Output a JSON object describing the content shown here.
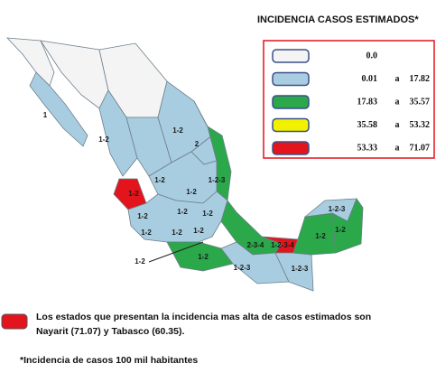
{
  "title": "INCIDENCIA CASOS ESTIMADOS*",
  "legend": [
    {
      "color": "#f4f4f4",
      "min": "0.0"
    },
    {
      "color": "#a9cde0",
      "min": "0.01",
      "sep": "a",
      "max": "17.82"
    },
    {
      "color": "#2aa84a",
      "min": "17.83",
      "sep": "a",
      "max": "35.57"
    },
    {
      "color": "#f2f200",
      "min": "35.58",
      "sep": "a",
      "max": "53.32"
    },
    {
      "color": "#e3141b",
      "min": "53.33",
      "sep": "a",
      "max": "71.07"
    }
  ],
  "state_labels": [
    "1",
    "1-2",
    "1-2",
    "2",
    "1-2-3",
    "1-2",
    "1-2",
    "1-2",
    "1-2",
    "1-2",
    "1-2",
    "1-2",
    "1-2",
    "1-2",
    "1-2",
    "2-3-4",
    "1-2-3-4",
    "1-2",
    "1-2-3",
    "1-2",
    "1-2-3",
    "1-2-3",
    "1-2"
  ],
  "notes": {
    "line1": "Los estados que presentan la incidencia mas alta de casos estimados son",
    "line2": "Nayarit (71.07) y Tabasco (60.35).",
    "footnote": "*Incidencia de casos 100 mil habitantes"
  }
}
